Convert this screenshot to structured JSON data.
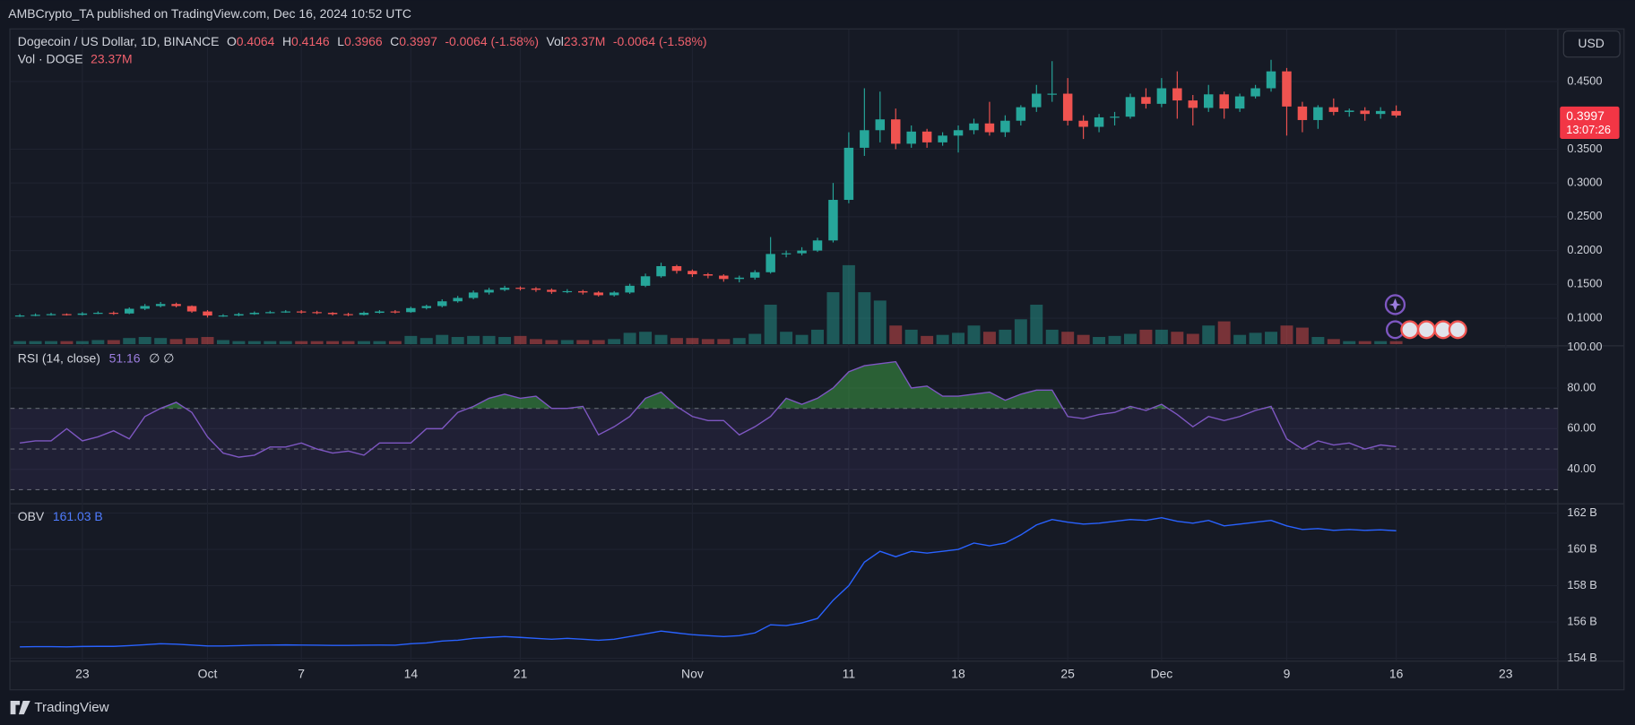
{
  "header": {
    "publish": "AMBCrypto_TA published on TradingView.com, Dec 16, 2024 10:52 UTC",
    "brand": "TradingView",
    "currency": "USD",
    "price_tag": "0.3997",
    "countdown": "13:07:26"
  },
  "chart_data": [
    {
      "type": "candlestick",
      "title": "Dogecoin / US Dollar, 1D, BINANCE",
      "ohlc": [
        {
          "key": "O",
          "value": "0.4064"
        },
        {
          "key": "H",
          "value": "0.4146"
        },
        {
          "key": "L",
          "value": "0.3966"
        },
        {
          "key": "C",
          "value": "0.3997"
        }
      ],
      "change": "-0.0064 (-1.58%)",
      "vol_key": "Vol",
      "vol_value": "23.37M",
      "vol_change": "-0.0064 (-1.58%)",
      "volume_title": "Vol · DOGE",
      "volume_value": "23.37M",
      "up_color": "#26a69a",
      "down_color": "#ef5350",
      "x": [
        "2024-09-19",
        "2024-09-20",
        "2024-09-21",
        "2024-09-22",
        "2024-09-23",
        "2024-09-24",
        "2024-09-25",
        "2024-09-26",
        "2024-09-27",
        "2024-09-28",
        "2024-09-29",
        "2024-09-30",
        "2024-10-01",
        "2024-10-02",
        "2024-10-03",
        "2024-10-04",
        "2024-10-05",
        "2024-10-06",
        "2024-10-07",
        "2024-10-08",
        "2024-10-09",
        "2024-10-10",
        "2024-10-11",
        "2024-10-12",
        "2024-10-13",
        "2024-10-14",
        "2024-10-15",
        "2024-10-16",
        "2024-10-17",
        "2024-10-18",
        "2024-10-19",
        "2024-10-20",
        "2024-10-21",
        "2024-10-22",
        "2024-10-23",
        "2024-10-24",
        "2024-10-25",
        "2024-10-26",
        "2024-10-27",
        "2024-10-28",
        "2024-10-29",
        "2024-10-30",
        "2024-10-31",
        "2024-11-01",
        "2024-11-02",
        "2024-11-03",
        "2024-11-04",
        "2024-11-05",
        "2024-11-06",
        "2024-11-07",
        "2024-11-08",
        "2024-11-09",
        "2024-11-10",
        "2024-11-11",
        "2024-11-12",
        "2024-11-13",
        "2024-11-14",
        "2024-11-15",
        "2024-11-16",
        "2024-11-17",
        "2024-11-18",
        "2024-11-19",
        "2024-11-20",
        "2024-11-21",
        "2024-11-22",
        "2024-11-23",
        "2024-11-24",
        "2024-11-25",
        "2024-11-26",
        "2024-11-27",
        "2024-11-28",
        "2024-11-29",
        "2024-11-30",
        "2024-12-01",
        "2024-12-02",
        "2024-12-03",
        "2024-12-04",
        "2024-12-05",
        "2024-12-06",
        "2024-12-07",
        "2024-12-08",
        "2024-12-09",
        "2024-12-10",
        "2024-12-11",
        "2024-12-12",
        "2024-12-13",
        "2024-12-14",
        "2024-12-15",
        "2024-12-16"
      ],
      "open": [
        0.103,
        0.104,
        0.105,
        0.106,
        0.105,
        0.107,
        0.108,
        0.107,
        0.114,
        0.118,
        0.121,
        0.118,
        0.11,
        0.104,
        0.104,
        0.106,
        0.108,
        0.109,
        0.11,
        0.109,
        0.108,
        0.106,
        0.105,
        0.108,
        0.11,
        0.109,
        0.115,
        0.118,
        0.125,
        0.13,
        0.138,
        0.142,
        0.145,
        0.144,
        0.142,
        0.139,
        0.14,
        0.138,
        0.134,
        0.138,
        0.148,
        0.162,
        0.177,
        0.17,
        0.165,
        0.163,
        0.158,
        0.16,
        0.168,
        0.195,
        0.196,
        0.2,
        0.215,
        0.275,
        0.352,
        0.378,
        0.394,
        0.358,
        0.376,
        0.36,
        0.37,
        0.378,
        0.388,
        0.375,
        0.392,
        0.412,
        0.432,
        0.432,
        0.392,
        0.383,
        0.397,
        0.398,
        0.427,
        0.417,
        0.44,
        0.422,
        0.411,
        0.431,
        0.41,
        0.428,
        0.44,
        0.465,
        0.413,
        0.393,
        0.412,
        0.405,
        0.407,
        0.402,
        0.4064
      ],
      "high": [
        0.106,
        0.107,
        0.108,
        0.107,
        0.109,
        0.11,
        0.11,
        0.116,
        0.121,
        0.124,
        0.123,
        0.119,
        0.112,
        0.106,
        0.108,
        0.11,
        0.111,
        0.112,
        0.112,
        0.111,
        0.109,
        0.108,
        0.11,
        0.112,
        0.112,
        0.117,
        0.12,
        0.128,
        0.133,
        0.141,
        0.145,
        0.148,
        0.147,
        0.146,
        0.144,
        0.143,
        0.142,
        0.14,
        0.14,
        0.151,
        0.166,
        0.182,
        0.179,
        0.172,
        0.167,
        0.165,
        0.163,
        0.171,
        0.22,
        0.2,
        0.205,
        0.219,
        0.3,
        0.375,
        0.44,
        0.435,
        0.41,
        0.385,
        0.38,
        0.375,
        0.385,
        0.395,
        0.42,
        0.4,
        0.415,
        0.445,
        0.48,
        0.455,
        0.4,
        0.402,
        0.405,
        0.432,
        0.44,
        0.455,
        0.465,
        0.43,
        0.445,
        0.435,
        0.432,
        0.445,
        0.482,
        0.47,
        0.42,
        0.415,
        0.425,
        0.41,
        0.412,
        0.412,
        0.4146
      ],
      "low": [
        0.102,
        0.103,
        0.104,
        0.104,
        0.104,
        0.106,
        0.105,
        0.106,
        0.112,
        0.116,
        0.116,
        0.108,
        0.101,
        0.102,
        0.103,
        0.105,
        0.107,
        0.108,
        0.107,
        0.106,
        0.104,
        0.103,
        0.104,
        0.107,
        0.107,
        0.108,
        0.113,
        0.116,
        0.123,
        0.128,
        0.135,
        0.14,
        0.141,
        0.139,
        0.136,
        0.137,
        0.135,
        0.132,
        0.132,
        0.136,
        0.146,
        0.16,
        0.166,
        0.161,
        0.159,
        0.154,
        0.153,
        0.157,
        0.166,
        0.19,
        0.193,
        0.198,
        0.212,
        0.27,
        0.34,
        0.36,
        0.35,
        0.352,
        0.352,
        0.355,
        0.345,
        0.372,
        0.37,
        0.368,
        0.385,
        0.405,
        0.42,
        0.385,
        0.365,
        0.375,
        0.385,
        0.395,
        0.41,
        0.412,
        0.395,
        0.385,
        0.405,
        0.395,
        0.405,
        0.425,
        0.435,
        0.37,
        0.375,
        0.38,
        0.4,
        0.398,
        0.392,
        0.395,
        0.3966
      ],
      "close": [
        0.104,
        0.105,
        0.106,
        0.105,
        0.107,
        0.108,
        0.107,
        0.114,
        0.118,
        0.121,
        0.118,
        0.11,
        0.104,
        0.104,
        0.106,
        0.108,
        0.109,
        0.11,
        0.109,
        0.108,
        0.106,
        0.105,
        0.108,
        0.11,
        0.109,
        0.115,
        0.118,
        0.125,
        0.13,
        0.138,
        0.142,
        0.145,
        0.144,
        0.142,
        0.139,
        0.14,
        0.138,
        0.134,
        0.138,
        0.148,
        0.162,
        0.177,
        0.17,
        0.165,
        0.163,
        0.158,
        0.16,
        0.168,
        0.195,
        0.196,
        0.2,
        0.215,
        0.275,
        0.352,
        0.378,
        0.394,
        0.358,
        0.376,
        0.36,
        0.37,
        0.378,
        0.388,
        0.375,
        0.392,
        0.412,
        0.432,
        0.432,
        0.392,
        0.383,
        0.397,
        0.398,
        0.427,
        0.417,
        0.44,
        0.422,
        0.411,
        0.431,
        0.41,
        0.428,
        0.44,
        0.465,
        0.413,
        0.393,
        0.412,
        0.405,
        0.407,
        0.402,
        0.4064,
        0.3997
      ],
      "volume": [
        23400000.0,
        23400000.0,
        23400000.0,
        23400000.0,
        23400000.0,
        31200000.0,
        31200000.0,
        46800000.0,
        54600000.0,
        46800000.0,
        39000000.0,
        46800000.0,
        54600000.0,
        31200000.0,
        23400000.0,
        23400000.0,
        23400000.0,
        23400000.0,
        23400000.0,
        23400000.0,
        23400000.0,
        23400000.0,
        23400000.0,
        23400000.0,
        23400000.0,
        62400000.0,
        46800000.0,
        70200000.0,
        54600000.0,
        62400000.0,
        62400000.0,
        54600000.0,
        62400000.0,
        39000000.0,
        31200000.0,
        31200000.0,
        31200000.0,
        31200000.0,
        39000000.0,
        85800000.0,
        93600000.0,
        70200000.0,
        46800000.0,
        46800000.0,
        39000000.0,
        39000000.0,
        46800000.0,
        78000000.0,
        296400000.0,
        93600000.0,
        70200000.0,
        109200000.0,
        390000000.0,
        592800000.0,
        390000000.0,
        327600000.0,
        140400000.0,
        109200000.0,
        62400000.0,
        70200000.0,
        85800000.0,
        140400000.0,
        93600000.0,
        109200000.0,
        187200000.0,
        296400000.0,
        109200000.0,
        93600000.0,
        70200000.0,
        54600000.0,
        62400000.0,
        78000000.0,
        109200000.0,
        109200000.0,
        93600000.0,
        78000000.0,
        140400000.0,
        171600000.0,
        70200000.0,
        85800000.0,
        93600000.0,
        140400000.0,
        124800000.0,
        54600000.0,
        39000000.0,
        23400000.0,
        23400000.0,
        23400000.0,
        23370000.0
      ],
      "volume_lim": [
        0,
        2360000000.0
      ],
      "xlim": [
        "2024-09-18",
        "2024-12-26"
      ],
      "xticks": [
        {
          "value": "2024-09-23",
          "label": "23"
        },
        {
          "value": "2024-10-01",
          "label": "Oct"
        },
        {
          "value": "2024-10-07",
          "label": "7"
        },
        {
          "value": "2024-10-14",
          "label": "14"
        },
        {
          "value": "2024-10-21",
          "label": "21"
        },
        {
          "value": "2024-11-01",
          "label": "Nov"
        },
        {
          "value": "2024-11-11",
          "label": "11"
        },
        {
          "value": "2024-11-18",
          "label": "18"
        },
        {
          "value": "2024-11-25",
          "label": "25"
        },
        {
          "value": "2024-12-01",
          "label": "Dec"
        },
        {
          "value": "2024-12-09",
          "label": "9"
        },
        {
          "value": "2024-12-16",
          "label": "16"
        },
        {
          "value": "2024-12-23",
          "label": "23"
        }
      ],
      "ylim": [
        0.0615,
        0.527
      ],
      "yticks": [
        {
          "value": 0.1,
          "label": "0.1000"
        },
        {
          "value": 0.15,
          "label": "0.1500"
        },
        {
          "value": 0.2,
          "label": "0.2000"
        },
        {
          "value": 0.25,
          "label": "0.2500"
        },
        {
          "value": 0.3,
          "label": "0.3000"
        },
        {
          "value": 0.35,
          "label": "0.3500"
        },
        {
          "value": 0.45,
          "label": "0.4500"
        }
      ],
      "grid": true
    },
    {
      "type": "line",
      "title": "RSI (14, close)",
      "value_text": "51.16",
      "extra": "∅ ∅",
      "color": "#7e57c2",
      "band_color": "#7e57c2",
      "overbought_color": "#3c9a44",
      "values": [
        53,
        54,
        54,
        60,
        54,
        56,
        59,
        55,
        66,
        70,
        73,
        68,
        56,
        48,
        46,
        47,
        51,
        51,
        53,
        50,
        48,
        49,
        47,
        53,
        53,
        53,
        60,
        60,
        68,
        71,
        75,
        77,
        75,
        76,
        70,
        70,
        71,
        57,
        61,
        66,
        75,
        78,
        71,
        66,
        64,
        64,
        57,
        61,
        66,
        75,
        72,
        75,
        80,
        88,
        91,
        92,
        93,
        80,
        81,
        76,
        76,
        77,
        78,
        74,
        77,
        79,
        79,
        66,
        65,
        67,
        68,
        71,
        69,
        72,
        67,
        61,
        66,
        64,
        66,
        69,
        71,
        55,
        50,
        54,
        52,
        53,
        50,
        52,
        51.16
      ],
      "levels": [
        70,
        50,
        30
      ],
      "ylim": [
        23.6,
        100
      ],
      "yticks": [
        {
          "value": 40,
          "label": "40.00"
        },
        {
          "value": 60,
          "label": "60.00"
        },
        {
          "value": 80,
          "label": "80.00"
        },
        {
          "value": 100,
          "label": "100.00"
        }
      ]
    },
    {
      "type": "line",
      "title": "OBV",
      "value_text": "161.03 B",
      "color": "#2962ff",
      "values": [
        154.63,
        154.64,
        154.64,
        154.63,
        154.65,
        154.66,
        154.66,
        154.7,
        154.75,
        154.8,
        154.78,
        154.73,
        154.68,
        154.68,
        154.7,
        154.72,
        154.73,
        154.74,
        154.73,
        154.72,
        154.71,
        154.71,
        154.72,
        154.73,
        154.72,
        154.8,
        154.85,
        154.95,
        155.0,
        155.1,
        155.15,
        155.2,
        155.15,
        155.1,
        155.05,
        155.1,
        155.05,
        155.0,
        155.05,
        155.2,
        155.35,
        155.5,
        155.4,
        155.3,
        155.25,
        155.2,
        155.25,
        155.4,
        155.85,
        155.8,
        155.95,
        156.2,
        157.2,
        158.0,
        159.3,
        159.9,
        159.6,
        159.9,
        159.8,
        159.9,
        160.0,
        160.35,
        160.2,
        160.35,
        160.8,
        161.35,
        161.65,
        161.5,
        161.4,
        161.45,
        161.55,
        161.65,
        161.6,
        161.75,
        161.55,
        161.45,
        161.6,
        161.3,
        161.4,
        161.5,
        161.6,
        161.3,
        161.1,
        161.15,
        161.05,
        161.1,
        161.05,
        161.08,
        161.03
      ],
      "ylim": [
        153.9,
        162.46
      ],
      "yticks": [
        {
          "value": 154,
          "label": "154 B"
        },
        {
          "value": 156,
          "label": "156 B"
        },
        {
          "value": 158,
          "label": "158 B"
        },
        {
          "value": 160,
          "label": "160 B"
        },
        {
          "value": 162,
          "label": "162 B"
        }
      ]
    }
  ]
}
